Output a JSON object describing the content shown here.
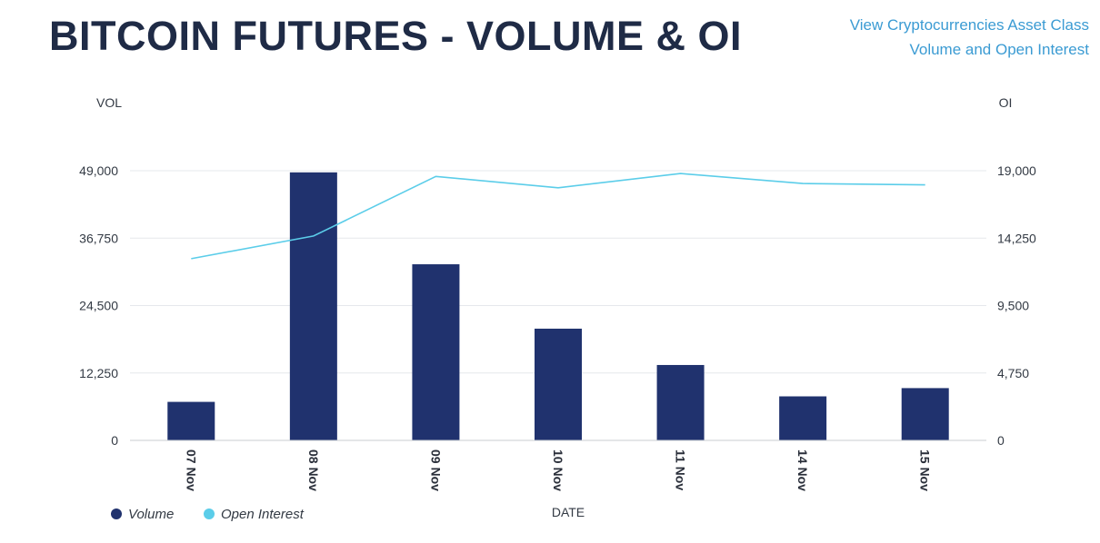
{
  "page": {
    "title": "BITCOIN FUTURES - VOLUME & OI",
    "link": {
      "line1": "View Cryptocurrencies Asset Class",
      "line2": "Volume and Open Interest"
    }
  },
  "colors": {
    "title": "#1f2b46",
    "link": "#3b9bd3",
    "volume": "#20326e",
    "open_interest": "#5bcde9",
    "grid": "#e6e8ec"
  },
  "chart_data": {
    "type": "bar",
    "categories": [
      "07 Nov",
      "08 Nov",
      "09 Nov",
      "10 Nov",
      "11 Nov",
      "14 Nov",
      "15 Nov"
    ],
    "series": [
      {
        "name": "Volume",
        "type": "bar",
        "axis": "left",
        "values": [
          7000,
          48700,
          32000,
          20300,
          13700,
          8000,
          9500
        ]
      },
      {
        "name": "Open Interest",
        "type": "line",
        "axis": "right",
        "values": [
          12800,
          14400,
          18600,
          17800,
          18800,
          18100,
          18000
        ]
      }
    ],
    "xlabel": "DATE",
    "ylabel_left": "VOL",
    "ylabel_right": "OI",
    "yticks_left": [
      "0",
      "12,250",
      "24,500",
      "36,750",
      "49,000"
    ],
    "yticks_right": [
      "0",
      "4,750",
      "9,500",
      "14,250",
      "19,000"
    ],
    "ylim_left": [
      0,
      49000
    ],
    "ylim_right": [
      0,
      19000
    ],
    "grid": true,
    "legend_position": "bottom-left"
  }
}
